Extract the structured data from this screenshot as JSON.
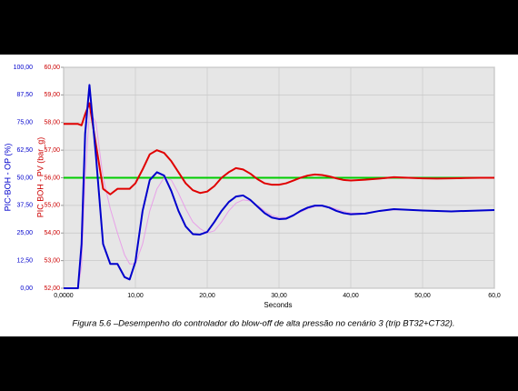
{
  "chart_data": {
    "type": "line",
    "caption": "Figura 5.6 –Desempenho do controlador do blow-off de alta pressão no cenário 3 (trip BT32+CT32).",
    "xlabel": "Seconds",
    "ylabel": "PIC-BOH - OP (%)",
    "y2label": "PIC BOH - PV (bar_g)",
    "grid": true,
    "xlim": [
      0,
      60
    ],
    "xticks": [
      {
        "value": 0,
        "label": "0,0000"
      },
      {
        "value": 10,
        "label": "10,00"
      },
      {
        "value": 20,
        "label": "20,00"
      },
      {
        "value": 30,
        "label": "30,00"
      },
      {
        "value": 40,
        "label": "40,00"
      },
      {
        "value": 50,
        "label": "50,00"
      },
      {
        "value": 60,
        "label": "60,0"
      }
    ],
    "ylim": [
      0,
      100
    ],
    "yticks": [
      {
        "value": 0,
        "label": "0,00"
      },
      {
        "value": 12.5,
        "label": "12,50"
      },
      {
        "value": 25,
        "label": "25,00"
      },
      {
        "value": 37.5,
        "label": "37,50"
      },
      {
        "value": 50,
        "label": "50,00"
      },
      {
        "value": 62.5,
        "label": "62,50"
      },
      {
        "value": 75,
        "label": "75,00"
      },
      {
        "value": 87.5,
        "label": "87,50"
      },
      {
        "value": 100,
        "label": "100,00"
      }
    ],
    "y2lim": [
      52,
      60
    ],
    "y2ticks": [
      {
        "value": 52,
        "label": "52,00"
      },
      {
        "value": 53,
        "label": "53,00"
      },
      {
        "value": 54,
        "label": "54,00"
      },
      {
        "value": 55,
        "label": "55,00"
      },
      {
        "value": 56,
        "label": "56,00"
      },
      {
        "value": 57,
        "label": "57,00"
      },
      {
        "value": 58,
        "label": "58,00"
      },
      {
        "value": 59,
        "label": "59,00"
      },
      {
        "value": 60,
        "label": "60,00"
      }
    ],
    "x": [
      0,
      2,
      2.5,
      3,
      3.6,
      4.5,
      5.5,
      6.5,
      7.5,
      8.5,
      9.2,
      10,
      11,
      12,
      13,
      14,
      15,
      16,
      17,
      18,
      19,
      20,
      21,
      22,
      23,
      24,
      25,
      26,
      27,
      28,
      29,
      30,
      31,
      32,
      33,
      34,
      35,
      36,
      37,
      38,
      39,
      40,
      42,
      44,
      46,
      48,
      50,
      52,
      54,
      56,
      58,
      60
    ],
    "series": [
      {
        "color": "#00cc00",
        "axis": "y2",
        "line_width": 2,
        "values": [
          56,
          56,
          56,
          56,
          56,
          56,
          56,
          56,
          56,
          56,
          56,
          56,
          56,
          56,
          56,
          56,
          56,
          56,
          56,
          56,
          56,
          56,
          56,
          56,
          56,
          56,
          56,
          56,
          56,
          56,
          56,
          56,
          56,
          56,
          56,
          56,
          56,
          56,
          56,
          56,
          56,
          56,
          56,
          56,
          56,
          56,
          56,
          56,
          56,
          56,
          56,
          56
        ]
      },
      {
        "color": "#e8a0e8",
        "axis": "y",
        "line_width": 1,
        "values": [
          0,
          0,
          10,
          50,
          80,
          75,
          50,
          36,
          25,
          15,
          11,
          11,
          20,
          35,
          45,
          50,
          49,
          43,
          36,
          30,
          27,
          25,
          26,
          30,
          35,
          38.5,
          40,
          39.5,
          37.5,
          35,
          33,
          32,
          32,
          33,
          34.5,
          36,
          37,
          37.2,
          36.8,
          35.8,
          34.8,
          34,
          34,
          34.8,
          35.5,
          35.5,
          35.2,
          35,
          34.9,
          35,
          35.2,
          35.4
        ]
      },
      {
        "color": "#e00000",
        "axis": "y2",
        "line_width": 2,
        "values": [
          57.95,
          57.95,
          57.9,
          58.3,
          58.7,
          57.2,
          55.6,
          55.4,
          55.6,
          55.6,
          55.6,
          55.8,
          56.3,
          56.85,
          57,
          56.9,
          56.6,
          56.2,
          55.8,
          55.55,
          55.45,
          55.5,
          55.7,
          56,
          56.2,
          56.35,
          56.3,
          56.15,
          55.95,
          55.8,
          55.75,
          55.75,
          55.8,
          55.9,
          56,
          56.08,
          56.12,
          56.1,
          56.05,
          55.98,
          55.92,
          55.9,
          55.93,
          55.97,
          56.02,
          56,
          55.98,
          55.97,
          55.98,
          55.99,
          56,
          56
        ]
      },
      {
        "color": "#0000cc",
        "axis": "y",
        "line_width": 2,
        "values": [
          0,
          0,
          20,
          70,
          92,
          60,
          20,
          11,
          11,
          5,
          4,
          12,
          35,
          49,
          52.5,
          51,
          44,
          35,
          28,
          24.5,
          24.3,
          25.5,
          30,
          35,
          39,
          41.5,
          42,
          40,
          37,
          34,
          32,
          31.3,
          31.5,
          33,
          35,
          36.5,
          37.4,
          37.4,
          36.5,
          35,
          34,
          33.5,
          33.8,
          35,
          35.8,
          35.5,
          35.2,
          35,
          34.8,
          35,
          35.2,
          35.4
        ]
      }
    ]
  }
}
